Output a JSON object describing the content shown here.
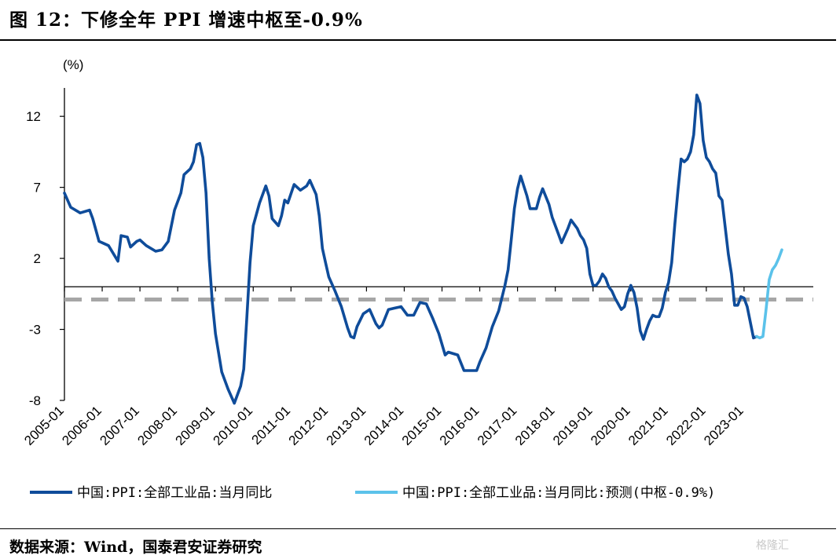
{
  "header": {
    "title": "图 12：下修全年 PPI 增速中枢至-0.9%"
  },
  "footer": {
    "source": "数据来源：Wind，国泰君安证券研究",
    "watermark": "格隆汇"
  },
  "colors": {
    "actual": "#0f4c9a",
    "forecast": "#5bc2ea",
    "center_line": "#a6a6a6"
  },
  "chart_data": {
    "type": "line",
    "ylabel": "(%)",
    "ylim": [
      -8,
      14
    ],
    "yticks": [
      12,
      7,
      2,
      -3,
      -8
    ],
    "xticks": [
      "2005-01",
      "2006-01",
      "2007-01",
      "2008-01",
      "2009-01",
      "2010-01",
      "2011-01",
      "2012-01",
      "2013-01",
      "2014-01",
      "2015-01",
      "2016-01",
      "2017-01",
      "2018-01",
      "2019-01",
      "2020-01",
      "2021-01",
      "2022-01",
      "2023-01"
    ],
    "legend_position": "bottom",
    "series": [
      {
        "name": "中国:PPI:全部工业品:当月同比",
        "color": "#0f4c9a",
        "style": "solid",
        "points": [
          [
            "2005-01",
            6.6
          ],
          [
            "2005-03",
            5.6
          ],
          [
            "2005-06",
            5.2
          ],
          [
            "2005-09",
            5.4
          ],
          [
            "2005-10",
            4.8
          ],
          [
            "2005-12",
            3.2
          ],
          [
            "2006-01",
            3.1
          ],
          [
            "2006-03",
            2.9
          ],
          [
            "2006-06",
            1.8
          ],
          [
            "2006-07",
            3.6
          ],
          [
            "2006-09",
            3.5
          ],
          [
            "2006-10",
            2.8
          ],
          [
            "2006-12",
            3.2
          ],
          [
            "2007-01",
            3.3
          ],
          [
            "2007-03",
            2.9
          ],
          [
            "2007-06",
            2.5
          ],
          [
            "2007-08",
            2.6
          ],
          [
            "2007-10",
            3.2
          ],
          [
            "2007-12",
            5.4
          ],
          [
            "2008-02",
            6.6
          ],
          [
            "2008-03",
            7.9
          ],
          [
            "2008-05",
            8.3
          ],
          [
            "2008-06",
            8.8
          ],
          [
            "2008-07",
            10.0
          ],
          [
            "2008-08",
            10.1
          ],
          [
            "2008-09",
            9.1
          ],
          [
            "2008-10",
            6.6
          ],
          [
            "2008-11",
            2.0
          ],
          [
            "2008-12",
            -1.1
          ],
          [
            "2009-01",
            -3.3
          ],
          [
            "2009-03",
            -6.0
          ],
          [
            "2009-05",
            -7.2
          ],
          [
            "2009-07",
            -8.2
          ],
          [
            "2009-09",
            -7.0
          ],
          [
            "2009-10",
            -5.8
          ],
          [
            "2009-11",
            -2.1
          ],
          [
            "2009-12",
            1.7
          ],
          [
            "2010-01",
            4.3
          ],
          [
            "2010-03",
            5.9
          ],
          [
            "2010-05",
            7.1
          ],
          [
            "2010-06",
            6.4
          ],
          [
            "2010-07",
            4.8
          ],
          [
            "2010-09",
            4.3
          ],
          [
            "2010-10",
            5.0
          ],
          [
            "2010-11",
            6.1
          ],
          [
            "2010-12",
            5.9
          ],
          [
            "2011-02",
            7.2
          ],
          [
            "2011-04",
            6.8
          ],
          [
            "2011-06",
            7.1
          ],
          [
            "2011-07",
            7.5
          ],
          [
            "2011-09",
            6.5
          ],
          [
            "2011-10",
            5.0
          ],
          [
            "2011-11",
            2.7
          ],
          [
            "2011-12",
            1.7
          ],
          [
            "2012-01",
            0.7
          ],
          [
            "2012-03",
            -0.3
          ],
          [
            "2012-05",
            -1.4
          ],
          [
            "2012-07",
            -2.9
          ],
          [
            "2012-08",
            -3.5
          ],
          [
            "2012-09",
            -3.6
          ],
          [
            "2012-10",
            -2.8
          ],
          [
            "2012-12",
            -1.9
          ],
          [
            "2013-02",
            -1.6
          ],
          [
            "2013-04",
            -2.6
          ],
          [
            "2013-05",
            -2.9
          ],
          [
            "2013-06",
            -2.7
          ],
          [
            "2013-08",
            -1.6
          ],
          [
            "2013-10",
            -1.5
          ],
          [
            "2013-12",
            -1.4
          ],
          [
            "2014-02",
            -2.0
          ],
          [
            "2014-04",
            -2.0
          ],
          [
            "2014-06",
            -1.1
          ],
          [
            "2014-08",
            -1.2
          ],
          [
            "2014-10",
            -2.2
          ],
          [
            "2014-12",
            -3.3
          ],
          [
            "2015-02",
            -4.8
          ],
          [
            "2015-03",
            -4.6
          ],
          [
            "2015-06",
            -4.8
          ],
          [
            "2015-08",
            -5.9
          ],
          [
            "2015-09",
            -5.9
          ],
          [
            "2015-11",
            -5.9
          ],
          [
            "2015-12",
            -5.9
          ],
          [
            "2016-01",
            -5.3
          ],
          [
            "2016-03",
            -4.3
          ],
          [
            "2016-05",
            -2.8
          ],
          [
            "2016-07",
            -1.7
          ],
          [
            "2016-09",
            0.1
          ],
          [
            "2016-10",
            1.2
          ],
          [
            "2016-11",
            3.3
          ],
          [
            "2016-12",
            5.5
          ],
          [
            "2017-01",
            6.9
          ],
          [
            "2017-02",
            7.8
          ],
          [
            "2017-04",
            6.4
          ],
          [
            "2017-05",
            5.5
          ],
          [
            "2017-07",
            5.5
          ],
          [
            "2017-08",
            6.3
          ],
          [
            "2017-09",
            6.9
          ],
          [
            "2017-11",
            5.8
          ],
          [
            "2017-12",
            4.9
          ],
          [
            "2018-02",
            3.7
          ],
          [
            "2018-03",
            3.1
          ],
          [
            "2018-05",
            4.1
          ],
          [
            "2018-06",
            4.7
          ],
          [
            "2018-08",
            4.1
          ],
          [
            "2018-09",
            3.6
          ],
          [
            "2018-10",
            3.3
          ],
          [
            "2018-11",
            2.7
          ],
          [
            "2018-12",
            0.9
          ],
          [
            "2019-01",
            0.1
          ],
          [
            "2019-02",
            0.1
          ],
          [
            "2019-03",
            0.4
          ],
          [
            "2019-04",
            0.9
          ],
          [
            "2019-05",
            0.6
          ],
          [
            "2019-06",
            0.0
          ],
          [
            "2019-07",
            -0.3
          ],
          [
            "2019-08",
            -0.8
          ],
          [
            "2019-09",
            -1.2
          ],
          [
            "2019-10",
            -1.6
          ],
          [
            "2019-11",
            -1.4
          ],
          [
            "2019-12",
            -0.5
          ],
          [
            "2020-01",
            0.1
          ],
          [
            "2020-02",
            -0.4
          ],
          [
            "2020-03",
            -1.5
          ],
          [
            "2020-04",
            -3.1
          ],
          [
            "2020-05",
            -3.7
          ],
          [
            "2020-06",
            -3.0
          ],
          [
            "2020-07",
            -2.4
          ],
          [
            "2020-08",
            -2.0
          ],
          [
            "2020-09",
            -2.1
          ],
          [
            "2020-10",
            -2.1
          ],
          [
            "2020-11",
            -1.5
          ],
          [
            "2020-12",
            -0.4
          ],
          [
            "2021-01",
            0.3
          ],
          [
            "2021-02",
            1.7
          ],
          [
            "2021-03",
            4.4
          ],
          [
            "2021-04",
            6.8
          ],
          [
            "2021-05",
            9.0
          ],
          [
            "2021-06",
            8.8
          ],
          [
            "2021-07",
            9.0
          ],
          [
            "2021-08",
            9.5
          ],
          [
            "2021-09",
            10.7
          ],
          [
            "2021-10",
            13.5
          ],
          [
            "2021-11",
            12.9
          ],
          [
            "2021-12",
            10.3
          ],
          [
            "2022-01",
            9.1
          ],
          [
            "2022-02",
            8.8
          ],
          [
            "2022-03",
            8.3
          ],
          [
            "2022-04",
            8.0
          ],
          [
            "2022-05",
            6.4
          ],
          [
            "2022-06",
            6.1
          ],
          [
            "2022-07",
            4.2
          ],
          [
            "2022-08",
            2.3
          ],
          [
            "2022-09",
            0.9
          ],
          [
            "2022-10",
            -1.3
          ],
          [
            "2022-11",
            -1.3
          ],
          [
            "2022-12",
            -0.7
          ],
          [
            "2023-01",
            -0.8
          ],
          [
            "2023-02",
            -1.4
          ],
          [
            "2023-03",
            -2.5
          ],
          [
            "2023-04",
            -3.6
          ],
          [
            "2023-05",
            -3.5
          ]
        ]
      },
      {
        "name": "中国:PPI:全部工业品:当月同比:预测(中枢-0.9%)",
        "color": "#5bc2ea",
        "style": "solid",
        "points": [
          [
            "2023-05",
            -3.5
          ],
          [
            "2023-06",
            -3.6
          ],
          [
            "2023-07",
            -3.5
          ],
          [
            "2023-08",
            -1.6
          ],
          [
            "2023-09",
            0.5
          ],
          [
            "2023-10",
            1.2
          ],
          [
            "2023-11",
            1.5
          ],
          [
            "2023-12",
            2.0
          ],
          [
            "2024-01",
            2.6
          ]
        ]
      },
      {
        "name": "",
        "color": "#a6a6a6",
        "style": "dashed",
        "constant": -0.9
      }
    ]
  }
}
